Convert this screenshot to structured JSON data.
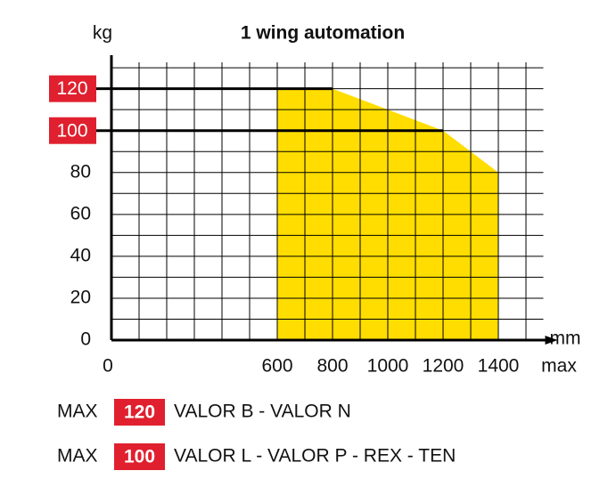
{
  "chart_data": {
    "type": "area",
    "title": "1 wing automation",
    "y_label": "kg",
    "x_label": "mm",
    "x_end_label": "max",
    "x": [
      600,
      800,
      1000,
      1200,
      1400
    ],
    "values": [
      120,
      120,
      110,
      100,
      80
    ],
    "color": "#ffdd00",
    "xlim": [
      0,
      1550
    ],
    "ylim": [
      0,
      136
    ],
    "xticks": [
      0,
      600,
      800,
      1000,
      1200,
      1400
    ],
    "yticks": [
      0,
      20,
      40,
      60,
      80,
      100,
      120
    ],
    "highlighted_yticks": [
      120,
      100
    ],
    "highlight_color": "#e0202e",
    "grid": true,
    "xgrid": [
      100,
      200,
      300,
      400,
      500,
      600,
      700,
      800,
      900,
      1000,
      1100,
      1200,
      1300,
      1400,
      1500
    ],
    "ygrid": [
      10,
      20,
      30,
      40,
      50,
      60,
      70,
      80,
      90,
      100,
      110,
      120,
      130
    ],
    "notes": [
      {
        "prefix": "MAX",
        "value": 120,
        "text": "VALOR B - VALOR N"
      },
      {
        "prefix": "MAX",
        "value": 100,
        "text": "VALOR L - VALOR P - REX - TEN"
      }
    ]
  }
}
